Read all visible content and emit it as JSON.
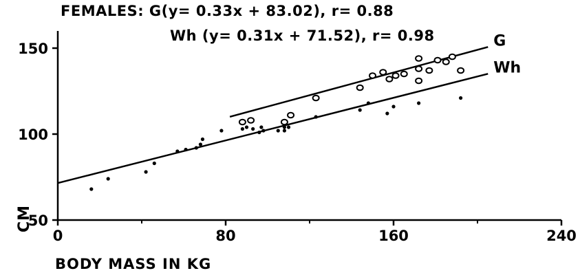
{
  "chart_data": {
    "type": "scatter",
    "title_lines": [
      "FEMALES: G(y= 0.33x + 83.02), r= 0.88",
      "Wh (y= 0.31x + 71.52), r= 0.98"
    ],
    "xlabel": "BODY MASS IN KG",
    "ylabel": "CM",
    "xlim": [
      0,
      240
    ],
    "ylim": [
      50,
      160
    ],
    "xticks": [
      0,
      80,
      160,
      240
    ],
    "yticks": [
      50,
      100,
      150
    ],
    "xtick_labels": [
      "0",
      "80",
      "160",
      "240"
    ],
    "ytick_labels": [
      "50",
      "100",
      "150"
    ],
    "grid": false,
    "series": [
      {
        "name": "G",
        "marker": "open-circle",
        "points": [
          [
            88,
            107
          ],
          [
            92,
            108
          ],
          [
            108,
            107
          ],
          [
            111,
            111
          ],
          [
            123,
            121
          ],
          [
            144,
            127
          ],
          [
            150,
            134
          ],
          [
            155,
            136
          ],
          [
            158,
            132
          ],
          [
            161,
            134
          ],
          [
            165,
            135
          ],
          [
            172,
            144
          ],
          [
            172,
            138
          ],
          [
            172,
            131
          ],
          [
            177,
            137
          ],
          [
            181,
            143
          ],
          [
            185,
            142
          ],
          [
            188,
            145
          ],
          [
            192,
            137
          ]
        ],
        "fit_line": {
          "label": "G",
          "slope": 0.33,
          "intercept": 83.02,
          "x_range": [
            82,
            205
          ]
        }
      },
      {
        "name": "Wh",
        "marker": "dot",
        "points": [
          [
            16,
            68
          ],
          [
            24,
            74
          ],
          [
            42,
            78
          ],
          [
            46,
            83
          ],
          [
            57,
            90
          ],
          [
            61,
            91
          ],
          [
            66,
            92
          ],
          [
            68,
            94
          ],
          [
            69,
            97
          ],
          [
            78,
            102
          ],
          [
            88,
            103
          ],
          [
            90,
            104
          ],
          [
            93,
            103
          ],
          [
            96,
            101
          ],
          [
            97,
            104
          ],
          [
            98,
            102
          ],
          [
            105,
            102
          ],
          [
            108,
            102
          ],
          [
            108,
            104
          ],
          [
            110,
            104
          ],
          [
            123,
            110
          ],
          [
            144,
            114
          ],
          [
            148,
            118
          ],
          [
            157,
            112
          ],
          [
            160,
            116
          ],
          [
            172,
            118
          ],
          [
            192,
            121
          ]
        ],
        "fit_line": {
          "label": "Wh",
          "slope": 0.31,
          "intercept": 71.52,
          "x_range": [
            0,
            205
          ]
        }
      }
    ]
  }
}
